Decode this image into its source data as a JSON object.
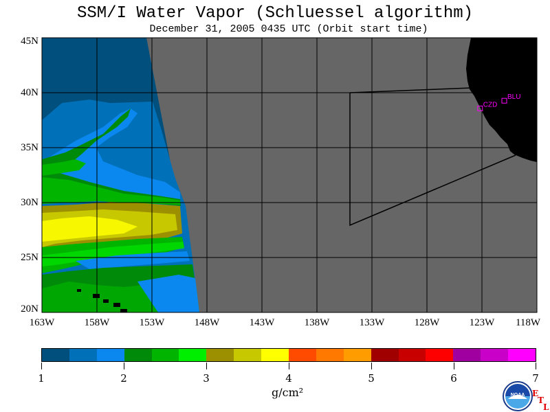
{
  "title": "SSM/I Water Vapor (Schluessel algorithm)",
  "subtitle": "December 31, 2005  0435 UTC  (Orbit start time)",
  "lat_labels": [
    "45N",
    "40N",
    "35N",
    "30N",
    "25N",
    "20N"
  ],
  "lon_labels": [
    "163W",
    "158W",
    "153W",
    "148W",
    "143W",
    "138W",
    "133W",
    "128W",
    "123W",
    "118W"
  ],
  "stations": [
    {
      "label": "CZD",
      "lon": -123.2,
      "lat": 38.6
    },
    {
      "label": "BLU",
      "lon": -121.0,
      "lat": 39.3
    }
  ],
  "colorbar": {
    "colors": [
      "#004f7c",
      "#0070b8",
      "#0a88f0",
      "#008a0a",
      "#00b400",
      "#00ef00",
      "#9c9000",
      "#c8c800",
      "#ffff00",
      "#ff4b00",
      "#ff7800",
      "#ff9c00",
      "#a00000",
      "#c80000",
      "#ff0000",
      "#a000a0",
      "#c800c8",
      "#ff00ff"
    ],
    "tick_labels": [
      "1",
      "2",
      "3",
      "4",
      "5",
      "6",
      "7"
    ],
    "units": "g/cm²"
  },
  "colors": {
    "no_data": "#666666",
    "land": "#000000",
    "station_marker": "#ff00ff"
  },
  "logos": {
    "noaa": "NOAA",
    "etl": "ETL"
  }
}
